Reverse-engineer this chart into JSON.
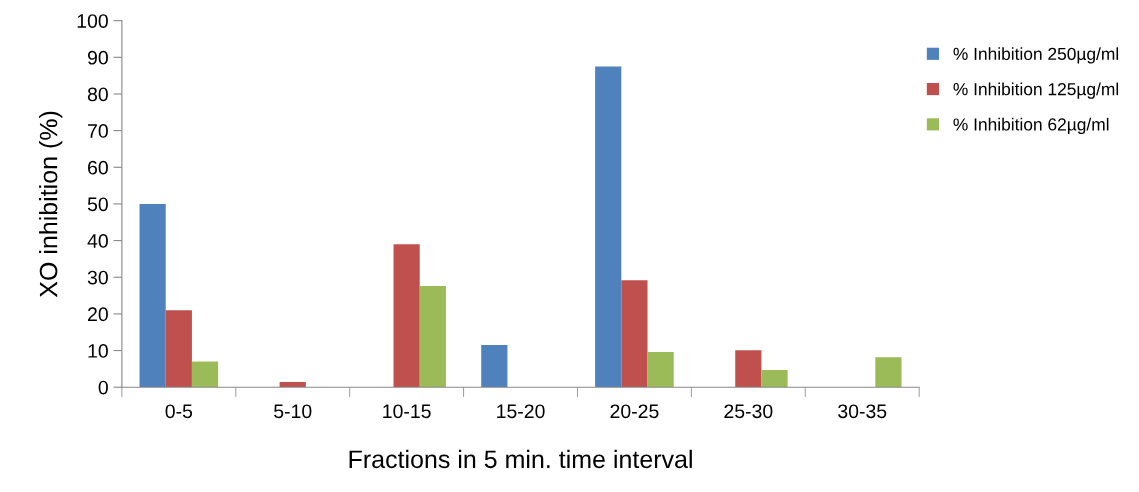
{
  "chart_data": {
    "type": "bar",
    "xlabel": "Fractions in 5 min. time interval",
    "ylabel": "XO inhibition (%)",
    "categories": [
      "0-5",
      "5-10",
      "10-15",
      "15-20",
      "20-25",
      "25-30",
      "30-35"
    ],
    "series": [
      {
        "name": "% Inhibition 250µg/ml",
        "color": "#4f81bd",
        "values": [
          50,
          0,
          0,
          11.5,
          87.5,
          0,
          0
        ]
      },
      {
        "name": "% Inhibition 125µg/ml",
        "color": "#c0504d",
        "values": [
          21,
          1.4,
          39,
          0,
          29.2,
          10.1,
          0
        ]
      },
      {
        "name": "% Inhibition 62µg/ml",
        "color": "#9bbb59",
        "values": [
          7,
          0,
          27.6,
          0,
          9.6,
          4.7,
          8.2
        ]
      }
    ],
    "ylim": [
      0,
      100
    ],
    "yticks": [
      0,
      10,
      20,
      30,
      40,
      50,
      60,
      70,
      80,
      90,
      100
    ],
    "grid": false,
    "legend": "right"
  }
}
